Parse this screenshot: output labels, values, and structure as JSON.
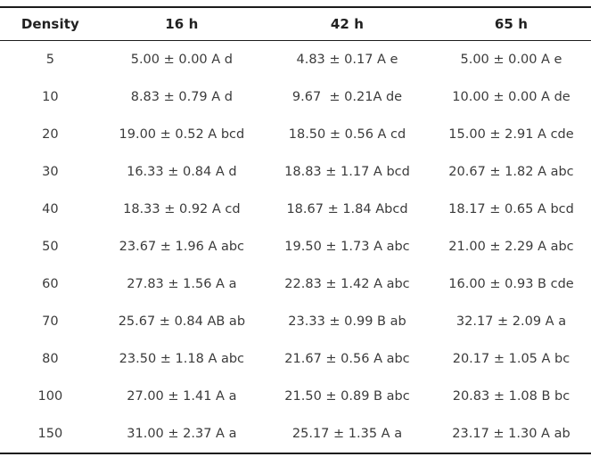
{
  "table": {
    "columns": [
      "Density",
      "16 h",
      "42 h",
      "65 h"
    ],
    "rows": [
      [
        "5",
        "5.00 ± 0.00 A d",
        "4.83 ± 0.17 A e",
        "5.00 ± 0.00 A e"
      ],
      [
        "10",
        "8.83 ± 0.79 A d",
        "9.67  ± 0.21A de",
        "10.00 ± 0.00 A de"
      ],
      [
        "20",
        "19.00 ± 0.52 A bcd",
        "18.50 ± 0.56 A cd",
        "15.00 ± 2.91 A cde"
      ],
      [
        "30",
        "16.33 ± 0.84 A d",
        "18.83 ± 1.17 A bcd",
        "20.67 ± 1.82 A abc"
      ],
      [
        "40",
        "18.33 ± 0.92 A cd",
        "18.67 ± 1.84 Abcd",
        "18.17 ± 0.65 A bcd"
      ],
      [
        "50",
        "23.67 ± 1.96 A abc",
        "19.50 ± 1.73 A abc",
        "21.00 ± 2.29 A abc"
      ],
      [
        "60",
        "27.83 ± 1.56 A a",
        "22.83 ± 1.42 A abc",
        "16.00 ± 0.93 B cde"
      ],
      [
        "70",
        "25.67 ± 0.84 AB ab",
        "23.33 ± 0.99 B ab",
        "32.17 ± 2.09 A a"
      ],
      [
        "80",
        "23.50 ± 1.18 A abc",
        "21.67 ± 0.56 A abc",
        "20.17 ± 1.05 A bc"
      ],
      [
        "100",
        "27.00 ± 1.41 A a",
        "21.50 ± 0.89 B abc",
        "20.83 ± 1.08 B bc"
      ],
      [
        "150",
        "31.00 ± 2.37 A a",
        "25.17 ± 1.35 A a",
        "23.17 ± 1.30 A ab"
      ]
    ]
  },
  "colors": {
    "border": "#1c1c1c",
    "header_text": "#212121",
    "body_text": "#3b3b3b",
    "background": "#ffffff"
  }
}
